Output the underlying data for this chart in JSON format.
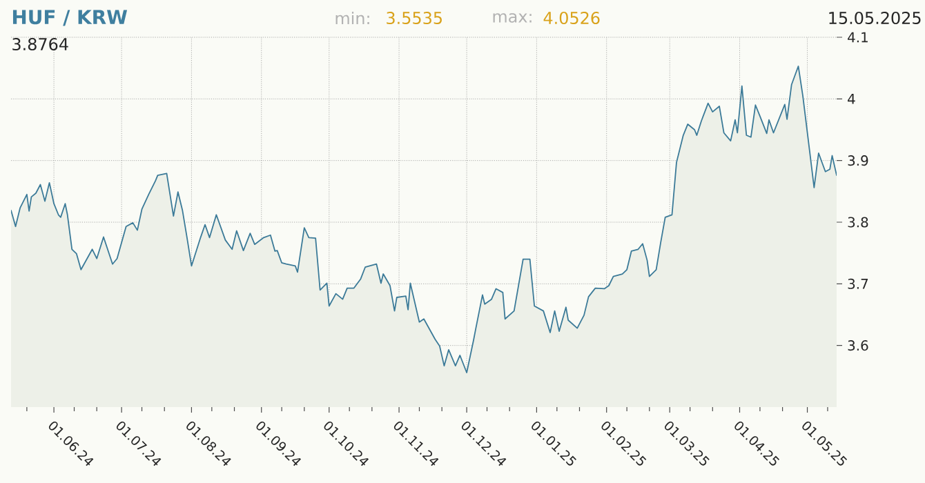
{
  "chart_data": {
    "type": "area",
    "title": "HUF / KRW",
    "annotations": [
      "min:",
      "3.5535",
      "max:",
      "4.0526",
      "15.05.2025",
      "3.8764"
    ],
    "color": "#3b7a98",
    "grid": true,
    "xlim": [
      "2024-05-13",
      "2025-05-14"
    ],
    "ylim": [
      3.5,
      4.1
    ],
    "yticks": [
      3.6,
      3.7,
      3.8,
      3.9,
      4,
      4.1
    ],
    "xticks": [
      {
        "value": "2024-05-20",
        "label": null
      },
      {
        "value": "2024-06-01",
        "label": "01.06.24"
      },
      {
        "value": "2024-06-10",
        "label": null
      },
      {
        "value": "2024-06-20",
        "label": null
      },
      {
        "value": "2024-07-01",
        "label": "01.07.24"
      },
      {
        "value": "2024-07-10",
        "label": null
      },
      {
        "value": "2024-07-20",
        "label": null
      },
      {
        "value": "2024-08-01",
        "label": "01.08.24"
      },
      {
        "value": "2024-08-10",
        "label": null
      },
      {
        "value": "2024-08-20",
        "label": null
      },
      {
        "value": "2024-09-01",
        "label": "01.09.24"
      },
      {
        "value": "2024-09-10",
        "label": null
      },
      {
        "value": "2024-09-20",
        "label": null
      },
      {
        "value": "2024-10-01",
        "label": "01.10.24"
      },
      {
        "value": "2024-10-10",
        "label": null
      },
      {
        "value": "2024-10-20",
        "label": null
      },
      {
        "value": "2024-11-01",
        "label": "01.11.24"
      },
      {
        "value": "2024-11-10",
        "label": null
      },
      {
        "value": "2024-11-20",
        "label": null
      },
      {
        "value": "2024-12-01",
        "label": "01.12.24"
      },
      {
        "value": "2024-12-10",
        "label": null
      },
      {
        "value": "2024-12-20",
        "label": null
      },
      {
        "value": "2025-01-01",
        "label": "01.01.25"
      },
      {
        "value": "2025-01-10",
        "label": null
      },
      {
        "value": "2025-01-20",
        "label": null
      },
      {
        "value": "2025-02-01",
        "label": "01.02.25"
      },
      {
        "value": "2025-02-10",
        "label": null
      },
      {
        "value": "2025-02-20",
        "label": null
      },
      {
        "value": "2025-03-01",
        "label": "01.03.25"
      },
      {
        "value": "2025-03-10",
        "label": null
      },
      {
        "value": "2025-03-20",
        "label": null
      },
      {
        "value": "2025-04-01",
        "label": "01.04.25"
      },
      {
        "value": "2025-04-10",
        "label": null
      },
      {
        "value": "2025-04-20",
        "label": null
      },
      {
        "value": "2025-05-01",
        "label": "01.05.25"
      },
      {
        "value": "2025-05-10",
        "label": null
      }
    ],
    "x": [
      "2024-05-13",
      "2024-05-15",
      "2024-05-17",
      "2024-05-20",
      "2024-05-21",
      "2024-05-22",
      "2024-05-24",
      "2024-05-26",
      "2024-05-28",
      "2024-05-30",
      "2024-06-01",
      "2024-06-03",
      "2024-06-04",
      "2024-06-06",
      "2024-06-07",
      "2024-06-09",
      "2024-06-11",
      "2024-06-13",
      "2024-06-18",
      "2024-06-20",
      "2024-06-23",
      "2024-06-27",
      "2024-06-29",
      "2024-07-03",
      "2024-07-06",
      "2024-07-08",
      "2024-07-10",
      "2024-07-13",
      "2024-07-16",
      "2024-07-17",
      "2024-07-21",
      "2024-07-24",
      "2024-07-26",
      "2024-07-28",
      "2024-07-30",
      "2024-08-01",
      "2024-08-05",
      "2024-08-07",
      "2024-08-09",
      "2024-08-12",
      "2024-08-16",
      "2024-08-19",
      "2024-08-21",
      "2024-08-24",
      "2024-08-27",
      "2024-08-29",
      "2024-09-02",
      "2024-09-05",
      "2024-09-07",
      "2024-09-08",
      "2024-09-10",
      "2024-09-12",
      "2024-09-16",
      "2024-09-17",
      "2024-09-20",
      "2024-09-22",
      "2024-09-25",
      "2024-09-27",
      "2024-09-30",
      "2024-10-01",
      "2024-10-04",
      "2024-10-07",
      "2024-10-09",
      "2024-10-12",
      "2024-10-15",
      "2024-10-17",
      "2024-10-22",
      "2024-10-24",
      "2024-10-25",
      "2024-10-28",
      "2024-10-30",
      "2024-10-31",
      "2024-11-04",
      "2024-11-05",
      "2024-11-06",
      "2024-11-10",
      "2024-11-12",
      "2024-11-17",
      "2024-11-19",
      "2024-11-21",
      "2024-11-23",
      "2024-11-26",
      "2024-11-28",
      "2024-12-01",
      "2024-12-04",
      "2024-12-05",
      "2024-12-08",
      "2024-12-09",
      "2024-12-12",
      "2024-12-14",
      "2024-12-17",
      "2024-12-18",
      "2024-12-22",
      "2024-12-26",
      "2024-12-29",
      "2024-12-31",
      "2025-01-04",
      "2025-01-07",
      "2025-01-09",
      "2025-01-11",
      "2025-01-14",
      "2025-01-15",
      "2025-01-19",
      "2025-01-22",
      "2025-01-24",
      "2025-01-27",
      "2025-01-31",
      "2025-02-02",
      "2025-02-04",
      "2025-02-08",
      "2025-02-10",
      "2025-02-12",
      "2025-02-15",
      "2025-02-17",
      "2025-02-19",
      "2025-02-20",
      "2025-02-23",
      "2025-02-25",
      "2025-02-27",
      "2025-03-02",
      "2025-03-04",
      "2025-03-07",
      "2025-03-09",
      "2025-03-12",
      "2025-03-13",
      "2025-03-15",
      "2025-03-18",
      "2025-03-20",
      "2025-03-23",
      "2025-03-25",
      "2025-03-28",
      "2025-03-30",
      "2025-03-31",
      "2025-04-02",
      "2025-04-04",
      "2025-04-06",
      "2025-04-08",
      "2025-04-10",
      "2025-04-13",
      "2025-04-14",
      "2025-04-16",
      "2025-04-21",
      "2025-04-22",
      "2025-04-24",
      "2025-04-27",
      "2025-04-29",
      "2025-05-02",
      "2025-05-04",
      "2025-05-06",
      "2025-05-09",
      "2025-05-11",
      "2025-05-12",
      "2025-05-14"
    ],
    "values": [
      3.819,
      3.793,
      3.823,
      3.845,
      3.818,
      3.841,
      3.847,
      3.861,
      3.834,
      3.864,
      3.83,
      3.812,
      3.808,
      3.83,
      3.812,
      3.756,
      3.749,
      3.723,
      3.756,
      3.741,
      3.776,
      3.732,
      3.741,
      3.793,
      3.799,
      3.787,
      3.821,
      3.845,
      3.867,
      3.876,
      3.879,
      3.81,
      3.849,
      3.819,
      3.775,
      3.729,
      3.775,
      3.796,
      3.775,
      3.812,
      3.771,
      3.756,
      3.786,
      3.754,
      3.782,
      3.764,
      3.775,
      3.779,
      3.753,
      3.754,
      3.734,
      3.732,
      3.729,
      3.719,
      3.791,
      3.775,
      3.774,
      3.69,
      3.701,
      3.664,
      3.684,
      3.675,
      3.693,
      3.693,
      3.708,
      3.727,
      3.732,
      3.701,
      3.716,
      3.697,
      3.656,
      3.678,
      3.68,
      3.658,
      3.701,
      3.638,
      3.643,
      3.61,
      3.599,
      3.567,
      3.593,
      3.567,
      3.584,
      3.556,
      3.608,
      3.627,
      3.682,
      3.667,
      3.675,
      3.692,
      3.686,
      3.643,
      3.656,
      3.74,
      3.74,
      3.664,
      3.656,
      3.621,
      3.656,
      3.623,
      3.662,
      3.641,
      3.628,
      3.649,
      3.679,
      3.693,
      3.692,
      3.697,
      3.712,
      3.716,
      3.723,
      3.753,
      3.756,
      3.765,
      3.738,
      3.712,
      3.723,
      3.767,
      3.808,
      3.812,
      3.897,
      3.941,
      3.959,
      3.95,
      3.941,
      3.964,
      3.993,
      3.979,
      3.988,
      3.945,
      3.932,
      3.966,
      3.945,
      4.021,
      3.941,
      3.938,
      3.99,
      3.972,
      3.944,
      3.966,
      3.945,
      3.991,
      3.967,
      4.023,
      4.053,
      4.005,
      3.916,
      3.856,
      3.912,
      3.882,
      3.886,
      3.908,
      3.876
    ]
  }
}
